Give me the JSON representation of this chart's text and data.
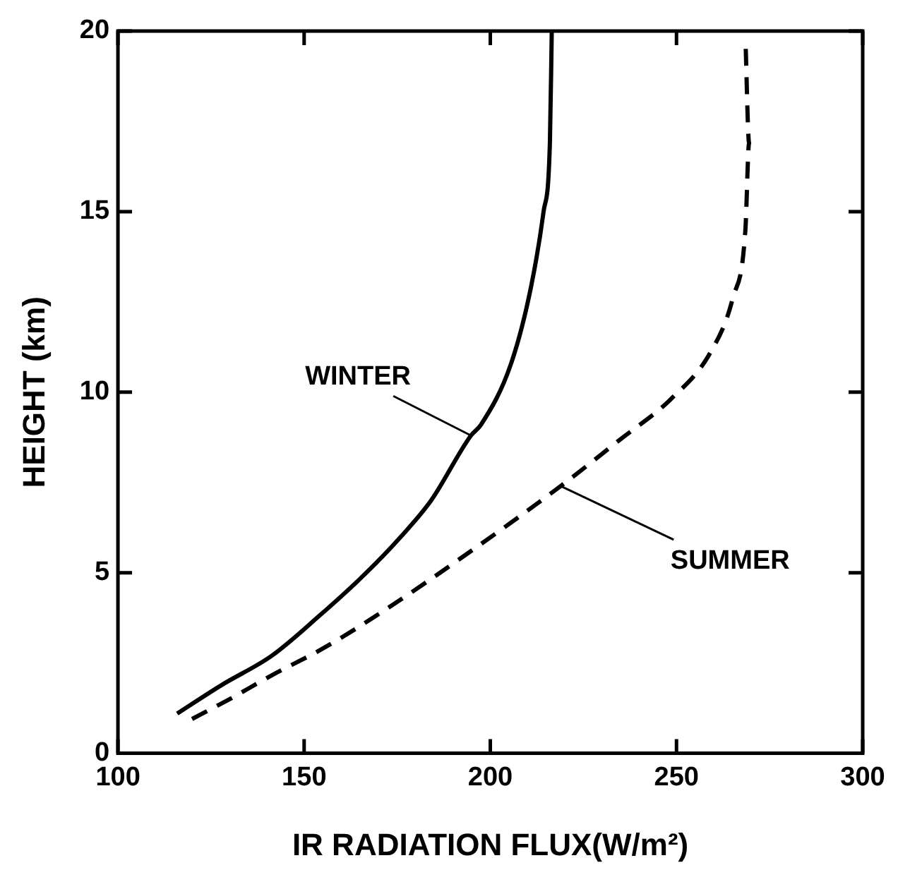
{
  "chart_data": {
    "type": "line",
    "xlabel": "IR RADIATION FLUX(W/m²)",
    "ylabel": "HEIGHT (km)",
    "xlim": [
      100,
      300
    ],
    "xticks": [
      100,
      150,
      200,
      250,
      300
    ],
    "ylim": [
      0,
      20
    ],
    "yticks": [
      0,
      5,
      10,
      15,
      20
    ],
    "marker": "none",
    "legend": false,
    "series": [
      {
        "color": "#000000",
        "line_style": "solid",
        "x": [
          115.9,
          128,
          141.3,
          154,
          166.7,
          176,
          184.1,
          194.8,
          197.5,
          205.6,
          210.9,
          214.3,
          216,
          216.5
        ],
        "values": [
          1.1,
          1.9,
          2.7,
          3.8,
          5.0,
          6.0,
          7.0,
          8.8,
          9.1,
          10.8,
          12.9,
          15.0,
          16.9,
          20.0
        ]
      },
      {
        "color": "#000000",
        "line_style": "dashed",
        "x": [
          119.9,
          130,
          141.3,
          155,
          170.7,
          194.8,
          218.9,
          235,
          248.4,
          259.1,
          265.1,
          268.5,
          269.5,
          268.5
        ],
        "values": [
          0.95,
          1.5,
          2.16,
          2.9,
          3.9,
          5.6,
          7.4,
          8.7,
          9.8,
          11.1,
          12.6,
          14.5,
          16.9,
          19.8
        ]
      }
    ],
    "annotations": [
      {
        "text": "WINTER",
        "x": 194.8,
        "y": 8.8
      },
      {
        "text": "SUMMER",
        "x": 218.9,
        "y": 7.4
      }
    ]
  }
}
